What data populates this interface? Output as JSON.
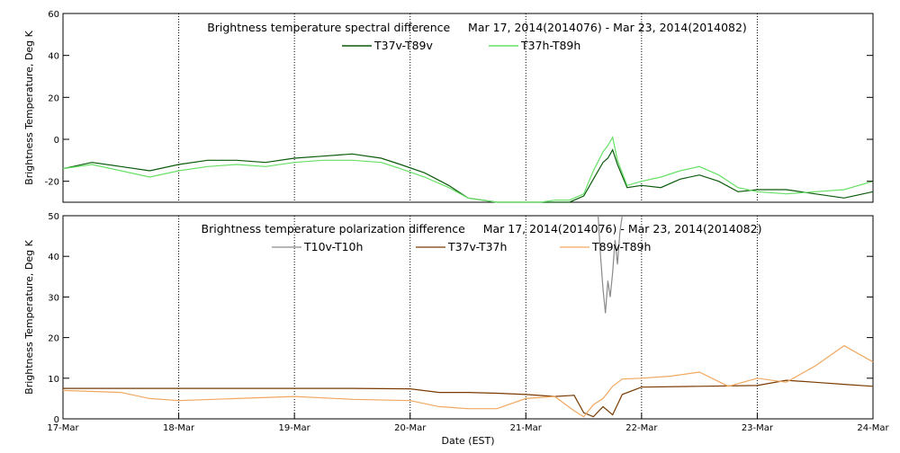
{
  "chart_data": [
    {
      "type": "line",
      "title": "Brightness temperature spectral difference     Mar 17, 2014(2014076) - Mar 23, 2014(2014082)",
      "xlabel": "",
      "ylabel": "Brightness Temperature, Deg K",
      "xlim": [
        "2014-03-17",
        "2014-03-24"
      ],
      "ylim": [
        -30,
        60
      ],
      "yticks": [
        -20,
        0,
        20,
        40,
        60
      ],
      "grid": "vertical dotted at day boundaries",
      "legend": "top-center",
      "series": [
        {
          "name": "T37v-T89v",
          "color": "#0a5a0a",
          "x": [
            "2014-03-17T00:00",
            "2014-03-17T06:00",
            "2014-03-17T12:00",
            "2014-03-17T18:00",
            "2014-03-18T00:00",
            "2014-03-18T06:00",
            "2014-03-18T12:00",
            "2014-03-18T18:00",
            "2014-03-19T00:00",
            "2014-03-19T06:00",
            "2014-03-19T12:00",
            "2014-03-19T18:00",
            "2014-03-19T22:00",
            "2014-03-20T03:00",
            "2014-03-20T08:00",
            "2014-03-20T12:00",
            "2014-03-20T18:00",
            "2014-03-21T00:00",
            "2014-03-21T03:00",
            "2014-03-21T06:00",
            "2014-03-21T09:00",
            "2014-03-21T12:00",
            "2014-03-21T14:00",
            "2014-03-21T16:00",
            "2014-03-21T17:00",
            "2014-03-21T18:00",
            "2014-03-21T19:00",
            "2014-03-21T21:00",
            "2014-03-22T00:00",
            "2014-03-22T04:00",
            "2014-03-22T08:00",
            "2014-03-22T12:00",
            "2014-03-22T16:00",
            "2014-03-22T20:00",
            "2014-03-23T00:00",
            "2014-03-23T06:00",
            "2014-03-23T12:00",
            "2014-03-23T18:00",
            "2014-03-24T00:00"
          ],
          "values": [
            -14,
            -11,
            -13,
            -15,
            -12,
            -10,
            -10,
            -11,
            -9,
            -8,
            -7,
            -9,
            -12,
            -16,
            -22,
            -28,
            -31,
            -31,
            -30,
            -30,
            -30,
            -27,
            -19,
            -11,
            -9,
            -5,
            -12,
            -23,
            -22,
            -23,
            -19,
            -17,
            -20,
            -25,
            -24,
            -24,
            -26,
            -28,
            -25
          ]
        },
        {
          "name": "T37h-T89h",
          "color": "#66e066",
          "x": [
            "2014-03-17T00:00",
            "2014-03-17T06:00",
            "2014-03-17T12:00",
            "2014-03-17T18:00",
            "2014-03-18T00:00",
            "2014-03-18T06:00",
            "2014-03-18T12:00",
            "2014-03-18T18:00",
            "2014-03-19T00:00",
            "2014-03-19T06:00",
            "2014-03-19T12:00",
            "2014-03-19T18:00",
            "2014-03-19T22:00",
            "2014-03-20T03:00",
            "2014-03-20T08:00",
            "2014-03-20T12:00",
            "2014-03-20T18:00",
            "2014-03-21T00:00",
            "2014-03-21T03:00",
            "2014-03-21T06:00",
            "2014-03-21T09:00",
            "2014-03-21T12:00",
            "2014-03-21T14:00",
            "2014-03-21T16:00",
            "2014-03-21T17:00",
            "2014-03-21T18:00",
            "2014-03-21T19:00",
            "2014-03-21T21:00",
            "2014-03-22T00:00",
            "2014-03-22T04:00",
            "2014-03-22T08:00",
            "2014-03-22T12:00",
            "2014-03-22T16:00",
            "2014-03-22T20:00",
            "2014-03-23T00:00",
            "2014-03-23T06:00",
            "2014-03-23T12:00",
            "2014-03-23T18:00",
            "2014-03-24T00:00"
          ],
          "values": [
            -14,
            -12,
            -15,
            -18,
            -15,
            -13,
            -12,
            -13,
            -11,
            -10,
            -10,
            -11,
            -14,
            -18,
            -23,
            -28,
            -31,
            -31,
            -30,
            -29,
            -29,
            -26,
            -15,
            -6,
            -3,
            1,
            -10,
            -22,
            -20,
            -18,
            -15,
            -13,
            -17,
            -23,
            -25,
            -26,
            -25,
            -24,
            -20
          ]
        }
      ]
    },
    {
      "type": "line",
      "title": "Brightness temperature polarization difference     Mar 17, 2014(2014076) - Mar 23, 2014(2014082)",
      "xlabel": "Date (EST)",
      "ylabel": "Brightness Temperature, Deg K",
      "xlim": [
        "2014-03-17",
        "2014-03-24"
      ],
      "ylim": [
        0,
        50
      ],
      "yticks": [
        0,
        10,
        20,
        30,
        40,
        50
      ],
      "xticks": [
        "17-Mar",
        "18-Mar",
        "19-Mar",
        "20-Mar",
        "21-Mar",
        "22-Mar",
        "23-Mar",
        "24-Mar"
      ],
      "grid": "vertical dotted at day boundaries",
      "legend": "top-center",
      "series": [
        {
          "name": "T10v-T10h",
          "color": "#8a8a8a",
          "x": [
            "2014-03-21T15:00",
            "2014-03-21T15:30",
            "2014-03-21T16:00",
            "2014-03-21T16:30",
            "2014-03-21T17:00",
            "2014-03-21T17:30",
            "2014-03-21T18:00",
            "2014-03-21T18:30",
            "2014-03-21T19:00",
            "2014-03-21T19:30",
            "2014-03-21T20:00"
          ],
          "values": [
            50,
            40,
            32,
            26,
            34,
            30,
            36,
            44,
            38,
            46,
            50
          ]
        },
        {
          "name": "T37v-T37h",
          "color": "#7a3a00",
          "x": [
            "2014-03-17T00:00",
            "2014-03-17T12:00",
            "2014-03-18T00:00",
            "2014-03-18T12:00",
            "2014-03-19T00:00",
            "2014-03-19T12:00",
            "2014-03-20T00:00",
            "2014-03-20T06:00",
            "2014-03-20T12:00",
            "2014-03-20T18:00",
            "2014-03-21T00:00",
            "2014-03-21T06:00",
            "2014-03-21T10:00",
            "2014-03-21T12:00",
            "2014-03-21T14:00",
            "2014-03-21T16:00",
            "2014-03-21T18:00",
            "2014-03-21T20:00",
            "2014-03-22T00:00",
            "2014-03-22T12:00",
            "2014-03-23T00:00",
            "2014-03-23T06:00",
            "2014-03-23T12:00",
            "2014-03-23T18:00",
            "2014-03-24T00:00"
          ],
          "values": [
            7.5,
            7.5,
            7.5,
            7.5,
            7.5,
            7.5,
            7.4,
            6.5,
            6.5,
            6.3,
            6.0,
            5.5,
            5.8,
            1.5,
            0.5,
            3.0,
            1.0,
            6.0,
            7.8,
            8.0,
            8.2,
            9.5,
            9.0,
            8.5,
            8.0
          ]
        },
        {
          "name": "T89v-T89h",
          "color": "#f0a860",
          "x": [
            "2014-03-17T00:00",
            "2014-03-17T12:00",
            "2014-03-17T18:00",
            "2014-03-18T00:00",
            "2014-03-18T12:00",
            "2014-03-19T00:00",
            "2014-03-19T12:00",
            "2014-03-20T00:00",
            "2014-03-20T06:00",
            "2014-03-20T12:00",
            "2014-03-20T18:00",
            "2014-03-21T00:00",
            "2014-03-21T06:00",
            "2014-03-21T10:00",
            "2014-03-21T12:00",
            "2014-03-21T14:00",
            "2014-03-21T16:00",
            "2014-03-21T18:00",
            "2014-03-21T20:00",
            "2014-03-22T00:00",
            "2014-03-22T06:00",
            "2014-03-22T12:00",
            "2014-03-22T18:00",
            "2014-03-23T00:00",
            "2014-03-23T06:00",
            "2014-03-23T12:00",
            "2014-03-23T18:00",
            "2014-03-24T00:00"
          ],
          "values": [
            7.0,
            6.5,
            5.0,
            4.5,
            5.0,
            5.5,
            4.8,
            4.5,
            3.0,
            2.5,
            2.5,
            5.0,
            5.5,
            2.0,
            0.5,
            3.5,
            5.0,
            8.0,
            9.8,
            10.0,
            10.5,
            11.5,
            8.0,
            10.0,
            9.0,
            13.0,
            18.0,
            14.0
          ]
        }
      ]
    }
  ]
}
